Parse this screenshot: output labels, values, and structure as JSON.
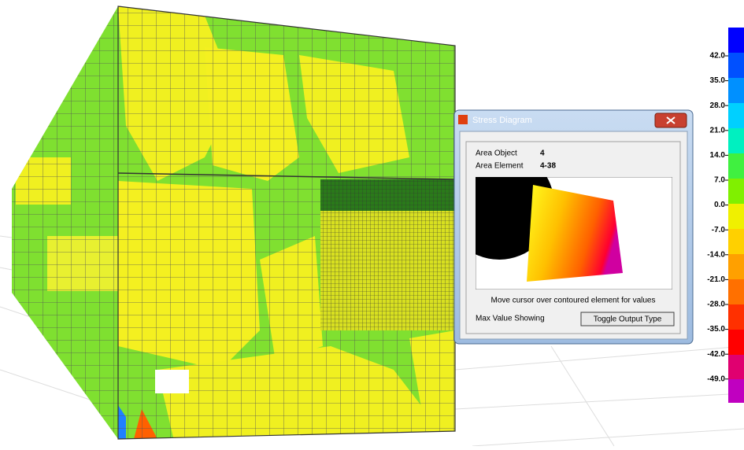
{
  "dialog": {
    "title": "Stress Diagram",
    "fields": [
      {
        "label": "Area Object",
        "value": "4"
      },
      {
        "label": "Area Element",
        "value": "4-38"
      }
    ],
    "hint": "Move cursor over contoured element for values",
    "status": "Max Value Showing",
    "button": "Toggle Output Type"
  },
  "legend": {
    "labels": [
      "42.0",
      "35.0",
      "28.0",
      "21.0",
      "14.0",
      "7.0",
      "0.0",
      "-7.0",
      "-14.0",
      "-21.0",
      "-28.0",
      "-35.0",
      "-42.0",
      "-49.0"
    ]
  }
}
